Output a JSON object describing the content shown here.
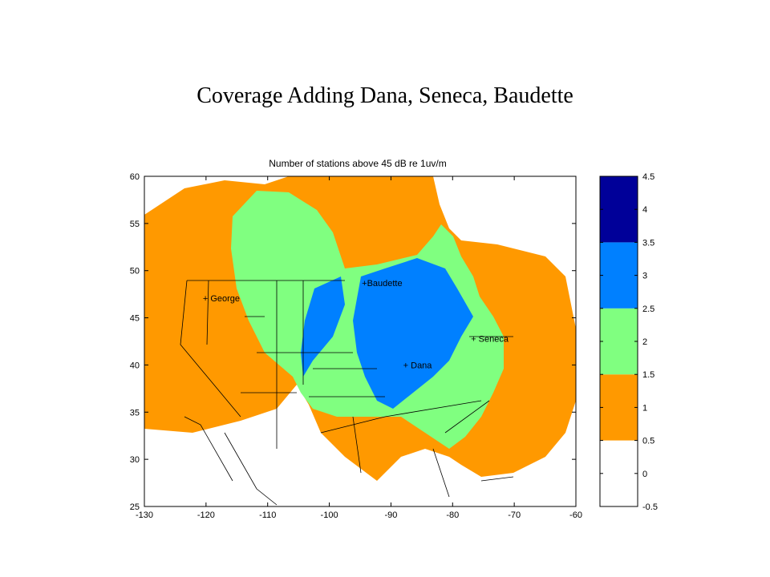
{
  "title": "Coverage Adding Dana, Seneca, Baudette",
  "map": {
    "title": "Number of stations above 45 dB re 1uv/m",
    "xlim": [
      -130,
      -60
    ],
    "ylim": [
      25,
      60
    ],
    "xticks": [
      -130,
      -120,
      -110,
      -100,
      -90,
      -80,
      -70,
      -60
    ],
    "yticks": [
      25,
      30,
      35,
      40,
      45,
      50,
      55,
      60
    ],
    "stations": [
      {
        "label": "+ George",
        "lon": -120,
        "lat": 47.1
      },
      {
        "label": "+Baudette",
        "lon": -94.2,
        "lat": 48.7
      },
      {
        "label": "+ Seneca",
        "lon": -76.5,
        "lat": 42.8
      },
      {
        "label": "+ Dana",
        "lon": -87.5,
        "lat": 40
      }
    ]
  },
  "colorbar": {
    "clim": [
      -0.5,
      4.5
    ],
    "ticks": [
      -0.5,
      0,
      0.5,
      1,
      1.5,
      2,
      2.5,
      3,
      3.5,
      4,
      4.5
    ],
    "colors": [
      "#ffffff",
      "#ff9900",
      "#80ff80",
      "#0080ff",
      "#000099"
    ]
  }
}
